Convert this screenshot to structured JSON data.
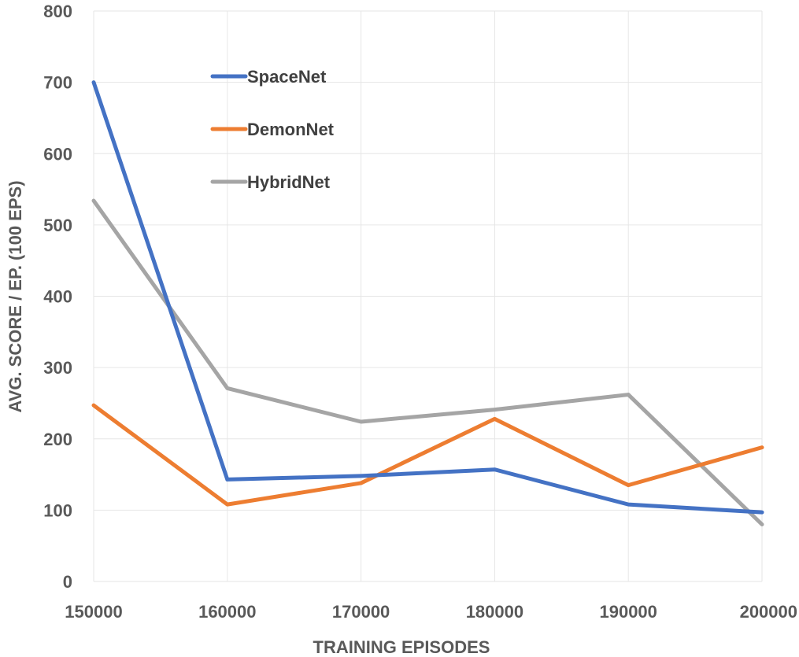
{
  "chart_data": {
    "type": "line",
    "x": [
      150000,
      160000,
      170000,
      180000,
      190000,
      200000
    ],
    "x_tick_labels": [
      "150000",
      "160000",
      "170000",
      "180000",
      "190000",
      "200000"
    ],
    "y_ticks": [
      0,
      100,
      200,
      300,
      400,
      500,
      600,
      700,
      800
    ],
    "y_tick_labels": [
      "0",
      "100",
      "200",
      "300",
      "400",
      "500",
      "600",
      "700",
      "800"
    ],
    "xlim": [
      150000,
      200000
    ],
    "ylim": [
      0,
      800
    ],
    "xlabel": "TRAINING EPISODES",
    "ylabel": "AVG. SCORE / EP. (100 EPS)",
    "grid": true,
    "legend_position": "upper-left inside plot",
    "series": [
      {
        "name": "SpaceNet",
        "color": "#4472C4",
        "values": [
          700,
          143,
          148,
          157,
          108,
          97
        ]
      },
      {
        "name": "DemonNet",
        "color": "#ED7D31",
        "values": [
          247,
          108,
          138,
          228,
          135,
          188
        ]
      },
      {
        "name": "HybridNet",
        "color": "#A5A5A5",
        "values": [
          534,
          271,
          224,
          241,
          262,
          80
        ]
      }
    ]
  }
}
